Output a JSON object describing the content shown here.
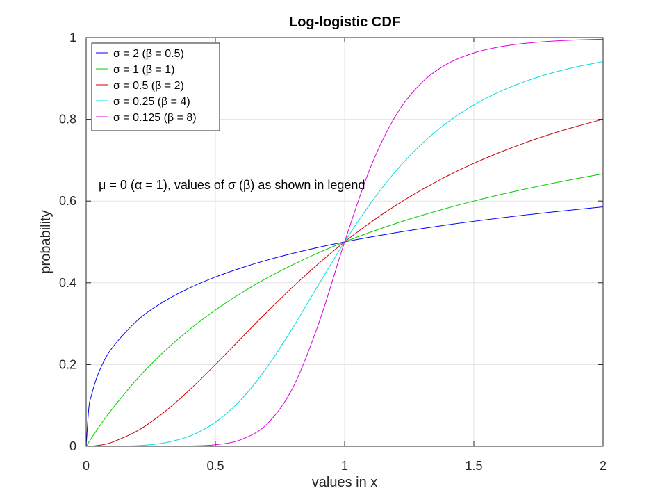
{
  "chart_data": {
    "type": "line",
    "title": "Log-logistic CDF",
    "xlabel": "values in x",
    "ylabel": "probability",
    "xlim": [
      0,
      2
    ],
    "ylim": [
      0,
      1
    ],
    "xticks": [
      0,
      0.5,
      1,
      1.5,
      2
    ],
    "xtick_labels": [
      "0",
      "0.5",
      "1",
      "1.5",
      "2"
    ],
    "yticks": [
      0,
      0.2,
      0.4,
      0.6,
      0.8,
      1
    ],
    "ytick_labels": [
      "0",
      "0.2",
      "0.4",
      "0.6",
      "0.8",
      "1"
    ],
    "grid": true,
    "legend_position": "top-left",
    "annotation": "μ = 0 (α = 1), values of σ (β) as shown in legend",
    "x": [
      0.01,
      0.02,
      0.05,
      0.1,
      0.2,
      0.3,
      0.4,
      0.5,
      0.6,
      0.7,
      0.8,
      0.9,
      1.0,
      1.1,
      1.2,
      1.3,
      1.4,
      1.5,
      1.6,
      1.7,
      1.8,
      1.9,
      2.0
    ],
    "series": [
      {
        "name": "σ = 2 (β = 0.5)",
        "color": "#0000ff",
        "values": [
          0.0909,
          0.1239,
          0.1827,
          0.2403,
          0.309,
          0.3539,
          0.3874,
          0.4142,
          0.4365,
          0.4555,
          0.4721,
          0.4868,
          0.5,
          0.5119,
          0.5228,
          0.5328,
          0.542,
          0.5505,
          0.5585,
          0.566,
          0.573,
          0.5796,
          0.5858
        ]
      },
      {
        "name": "σ = 1 (β = 1)",
        "color": "#00cc00",
        "values": [
          0.0099,
          0.0196,
          0.0476,
          0.0909,
          0.1667,
          0.2308,
          0.2857,
          0.3333,
          0.375,
          0.4118,
          0.4444,
          0.4737,
          0.5,
          0.5238,
          0.5455,
          0.5652,
          0.5833,
          0.6,
          0.6154,
          0.6296,
          0.6429,
          0.6552,
          0.6667
        ]
      },
      {
        "name": "σ = 0.5 (β = 2)",
        "color": "#cc0000",
        "values": [
          0.0001,
          0.0004,
          0.0025,
          0.0099,
          0.0385,
          0.0826,
          0.1379,
          0.2,
          0.2647,
          0.3289,
          0.3902,
          0.4475,
          0.5,
          0.5475,
          0.5902,
          0.6283,
          0.6622,
          0.6923,
          0.719,
          0.7429,
          0.7642,
          0.7831,
          0.8
        ]
      },
      {
        "name": "σ = 0.25 (β = 4)",
        "color": "#00dddd",
        "values": [
          0.0,
          0.0,
          0.0,
          0.0001,
          0.0016,
          0.008,
          0.025,
          0.0588,
          0.1147,
          0.1936,
          0.2906,
          0.3962,
          0.5,
          0.5941,
          0.6747,
          0.7407,
          0.7935,
          0.8351,
          0.8676,
          0.893,
          0.913,
          0.9287,
          0.9412
        ]
      },
      {
        "name": "σ = 0.125 (β = 8)",
        "color": "#dd00dd",
        "values": [
          0.0,
          0.0,
          0.0,
          0.0,
          0.0,
          0.0001,
          0.0007,
          0.0039,
          0.0165,
          0.0546,
          0.1437,
          0.3011,
          0.5,
          0.682,
          0.8115,
          0.8908,
          0.9365,
          0.9624,
          0.9772,
          0.9859,
          0.9911,
          0.9943,
          0.9961
        ]
      }
    ]
  }
}
